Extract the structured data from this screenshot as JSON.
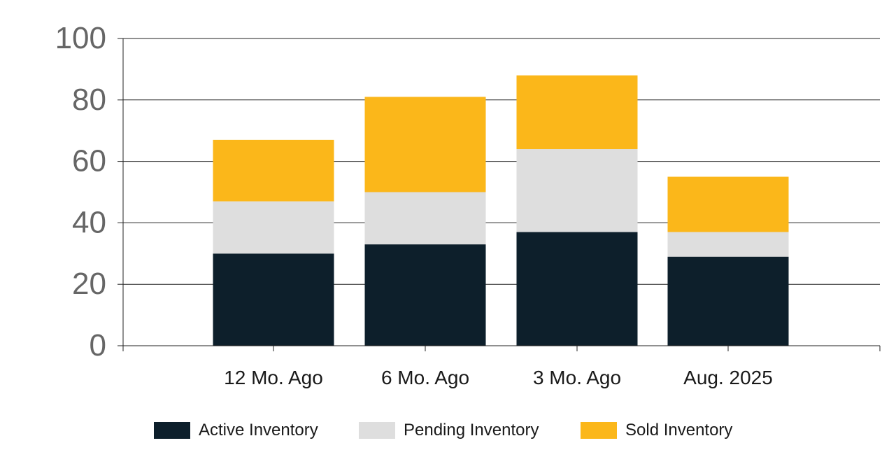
{
  "chart_data": {
    "type": "bar",
    "stacked": true,
    "categories": [
      "12 Mo. Ago",
      "6 Mo. Ago",
      "3 Mo. Ago",
      "Aug. 2025"
    ],
    "series": [
      {
        "name": "Active Inventory",
        "values": [
          30,
          33,
          37,
          29
        ],
        "color": "#0d1f2b"
      },
      {
        "name": "Pending Inventory",
        "values": [
          17,
          17,
          27,
          8
        ],
        "color": "#dedede"
      },
      {
        "name": "Sold Inventory",
        "values": [
          20,
          31,
          24,
          18
        ],
        "color": "#fbb71a"
      }
    ],
    "ylim": [
      0,
      100
    ],
    "yticks": [
      0,
      20,
      40,
      60,
      80,
      100
    ],
    "grid": true,
    "legend_position": "bottom",
    "title": "",
    "xlabel": "",
    "ylabel": ""
  }
}
